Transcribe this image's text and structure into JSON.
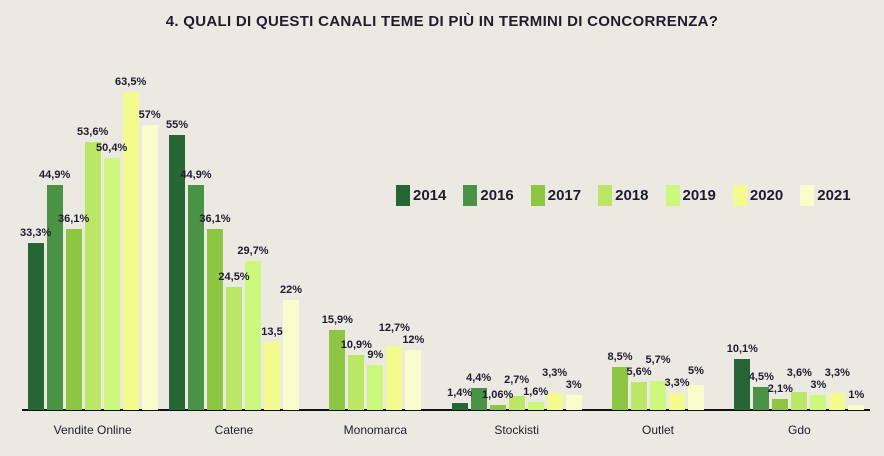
{
  "page": {
    "background": "#ece8e2",
    "text_color": "#1d1d30",
    "axis_line_color": "#111111"
  },
  "chart_data": {
    "type": "bar",
    "title": "4. QUALI DI QUESTI CANALI TEME DI PIÙ IN TERMINI DI CONCORRENZA?",
    "xlabel": "",
    "ylabel": "",
    "ylim": [
      0,
      68
    ],
    "grid": false,
    "value_unit": "percent",
    "legend": {
      "position": "center-right",
      "entries": [
        {
          "year": "2014",
          "color": "#266634"
        },
        {
          "year": "2016",
          "color": "#4a9245"
        },
        {
          "year": "2017",
          "color": "#8ec643"
        },
        {
          "year": "2018",
          "color": "#bce665"
        },
        {
          "year": "2019",
          "color": "#ccf87e"
        },
        {
          "year": "2020",
          "color": "#f5fa8d"
        },
        {
          "year": "2021",
          "color": "#f9fccb"
        }
      ]
    },
    "categories": [
      "Vendite Online",
      "Catene",
      "Monomarca",
      "Stockisti",
      "Outlet",
      "Gdo"
    ],
    "groups": [
      {
        "category": "Vendite Online",
        "bars": [
          {
            "year": "2014",
            "value": 33.3,
            "label": "33,3%"
          },
          {
            "year": "2016",
            "value": 44.9,
            "label": "44,9%"
          },
          {
            "year": "2017",
            "value": 36.1,
            "label": "36,1%"
          },
          {
            "year": "2018",
            "value": 53.6,
            "label": "53,6%"
          },
          {
            "year": "2019",
            "value": 50.4,
            "label": "50,4%"
          },
          {
            "year": "2020",
            "value": 63.5,
            "label": "63,5%"
          },
          {
            "year": "2021",
            "value": 57,
            "label": "57%"
          }
        ]
      },
      {
        "category": "Catene",
        "bars": [
          {
            "year": "2014",
            "value": 55,
            "label": "55%"
          },
          {
            "year": "2016",
            "value": 44.9,
            "label": "44,9%"
          },
          {
            "year": "2017",
            "value": 36.1,
            "label": "36,1%"
          },
          {
            "year": "2018",
            "value": 24.5,
            "label": "24,5%"
          },
          {
            "year": "2019",
            "value": 29.7,
            "label": "29,7%"
          },
          {
            "year": "2020",
            "value": 13.5,
            "label": "13,5"
          },
          {
            "year": "2021",
            "value": 22,
            "label": "22%"
          }
        ]
      },
      {
        "category": "Monomarca",
        "bars": [
          {
            "year": "2017",
            "value": 15.9,
            "label": "15,9%"
          },
          {
            "year": "2018",
            "value": 10.9,
            "label": "10,9%"
          },
          {
            "year": "2019",
            "value": 9,
            "label": "9%"
          },
          {
            "year": "2020",
            "value": 12.7,
            "label": "12,7%"
          },
          {
            "year": "2021",
            "value": 12,
            "label": "12%"
          }
        ]
      },
      {
        "category": "Stockisti",
        "bars": [
          {
            "year": "2014",
            "value": 1.4,
            "label": "1,4%"
          },
          {
            "year": "2016",
            "value": 4.4,
            "label": "4,4%"
          },
          {
            "year": "2017",
            "value": 1.06,
            "label": "1,06%"
          },
          {
            "year": "2018",
            "value": 2.7,
            "label": "2,7%"
          },
          {
            "year": "2019",
            "value": 1.6,
            "label": "1,6%"
          },
          {
            "year": "2020",
            "value": 3.3,
            "label": "3,3%"
          },
          {
            "year": "2021",
            "value": 3,
            "label": "3%"
          }
        ]
      },
      {
        "category": "Outlet",
        "bars": [
          {
            "year": "2017",
            "value": 8.5,
            "label": "8,5%"
          },
          {
            "year": "2018",
            "value": 5.6,
            "label": "5,6%"
          },
          {
            "year": "2019",
            "value": 5.7,
            "label": "5,7%"
          },
          {
            "year": "2020",
            "value": 3.3,
            "label": "3,3%"
          },
          {
            "year": "2021",
            "value": 5,
            "label": "5%"
          }
        ]
      },
      {
        "category": "Gdo",
        "bars": [
          {
            "year": "2014",
            "value": 10.1,
            "label": "10,1%"
          },
          {
            "year": "2016",
            "value": 4.5,
            "label": "4,5%"
          },
          {
            "year": "2017",
            "value": 2.1,
            "label": "2,1%"
          },
          {
            "year": "2018",
            "value": 3.6,
            "label": "3,6%"
          },
          {
            "year": "2019",
            "value": 3,
            "label": "3%"
          },
          {
            "year": "2020",
            "value": 3.3,
            "label": "3,3%"
          },
          {
            "year": "2021",
            "value": 1,
            "label": "1%"
          }
        ]
      }
    ]
  }
}
